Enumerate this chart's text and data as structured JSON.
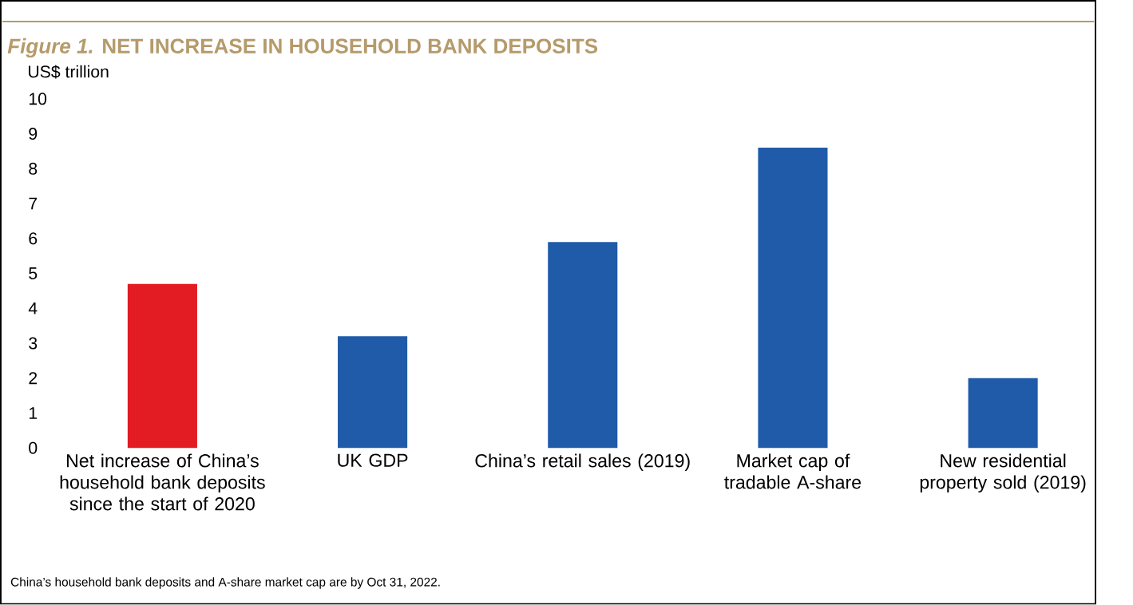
{
  "chart_data": {
    "type": "bar",
    "title": "*Figure 1.* NET INCREASE IN HOUSEHOLD BANK DEPOSITS",
    "ylabel": "US$ trillion",
    "categories": [
      "Net increase of China’s household bank deposits since the start of 2020",
      "UK GDP",
      "China’s retail sales (2019)",
      "Market cap of tradable A-share",
      "New residential property sold (2019)"
    ],
    "values": [
      4.7,
      3.2,
      5.9,
      8.6,
      2.0
    ],
    "colors": [
      "#e31b23",
      "#1f5ba8",
      "#1f5ba8",
      "#1f5ba8",
      "#1f5ba8"
    ],
    "ylim": [
      0,
      10
    ],
    "yticks": [
      0,
      1,
      2,
      3,
      4,
      5,
      6,
      7,
      8,
      9,
      10
    ],
    "annotations": [
      "China’s household bank deposits and A-share market cap are by Oct 31, 2022."
    ]
  }
}
